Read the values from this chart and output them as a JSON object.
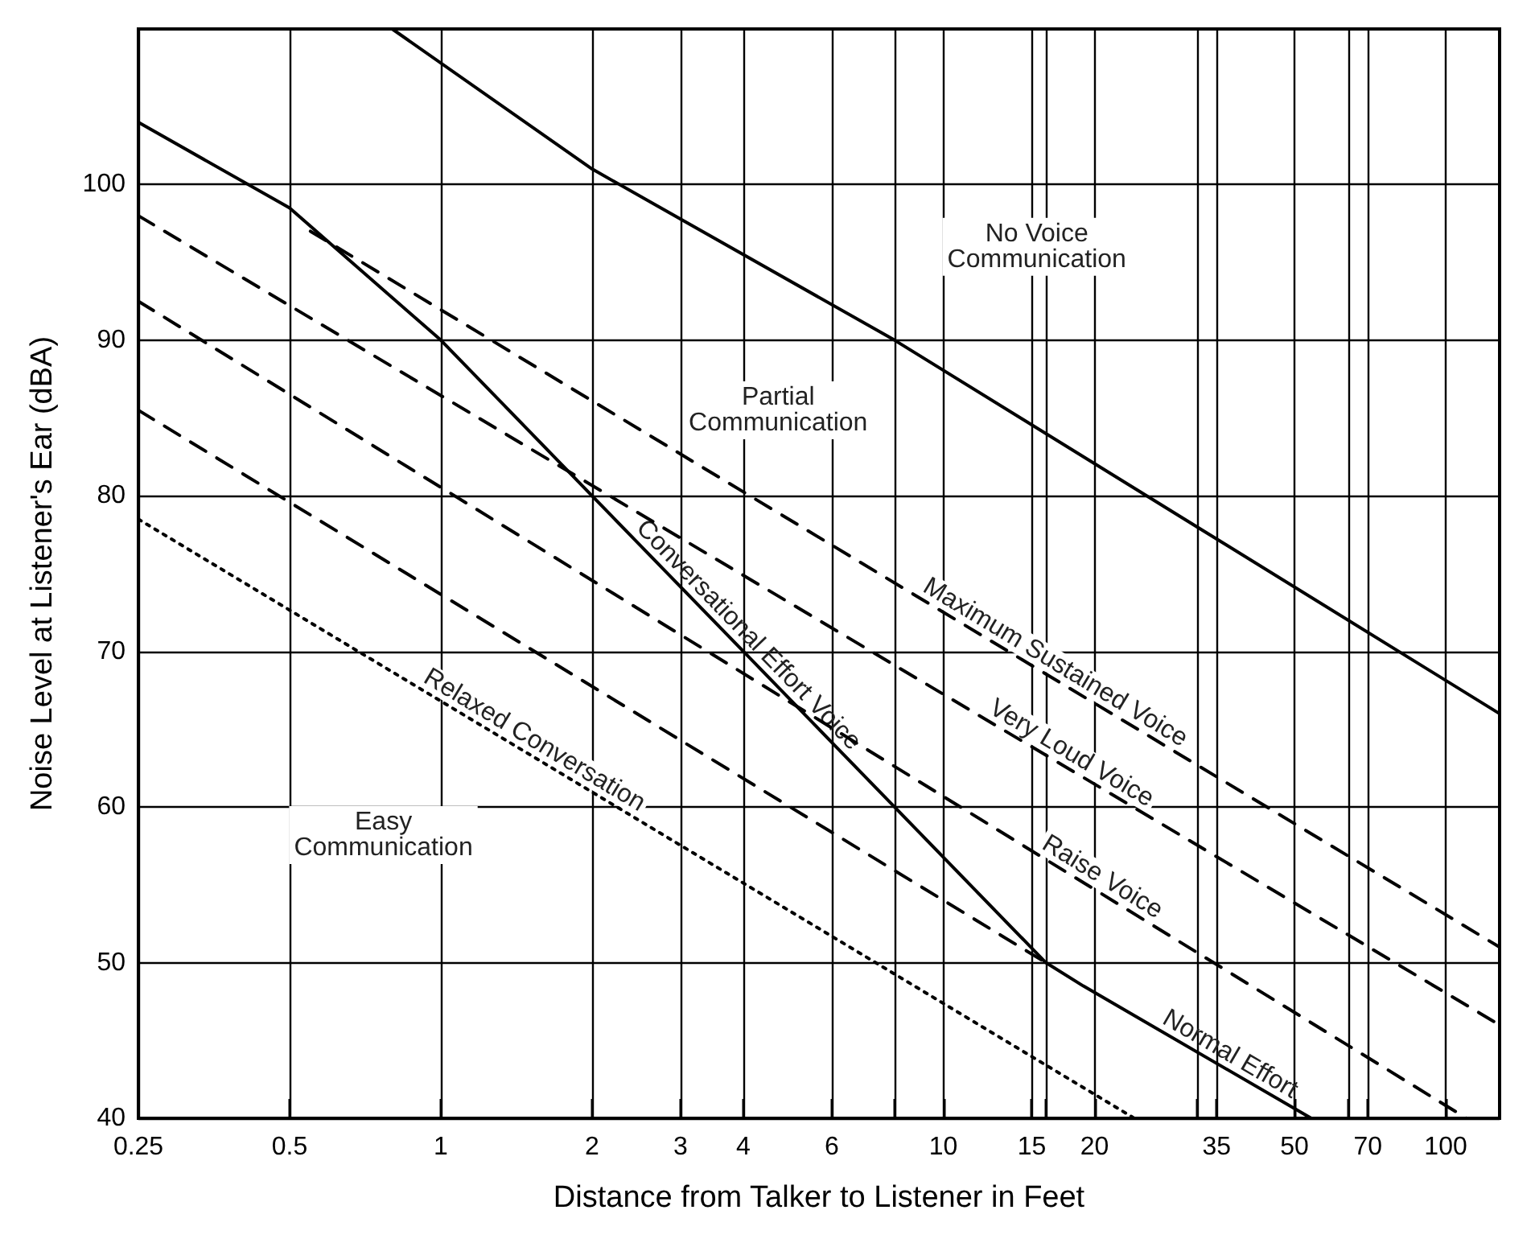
{
  "chart_data": {
    "type": "line",
    "xlabel": "Distance from Talker to Listener in Feet",
    "ylabel": "Noise Level at Listener's Ear (dBA)",
    "log": "x",
    "xlim": [
      0.25,
      128
    ],
    "ylim": [
      40,
      110
    ],
    "xticks": [
      0.25,
      0.5,
      1,
      2,
      3,
      4,
      6,
      {
        "value": 8,
        "label": null
      },
      10,
      15,
      {
        "value": 16,
        "label": null
      },
      20,
      {
        "value": 32,
        "label": null
      },
      35,
      50,
      {
        "value": 64,
        "label": null
      },
      70,
      100
    ],
    "yticks": [
      40,
      50,
      60,
      70,
      80,
      90,
      100
    ],
    "grid": true,
    "marker": "none",
    "series": [
      {
        "color": "#000000",
        "line_style": "solid",
        "x": [
          0.8,
          2,
          8,
          32,
          128
        ],
        "values": [
          110,
          101,
          90,
          78,
          66
        ]
      },
      {
        "color": "#000000",
        "line_style": "solid",
        "x": [
          0.25,
          0.5,
          1,
          2,
          4,
          8,
          16,
          19,
          54
        ],
        "values": [
          104,
          98.5,
          90,
          80,
          70,
          60,
          50,
          48.5,
          40
        ]
      },
      {
        "name": "Maximum Sustained Voice",
        "color": "#000000",
        "line_style": "dashed",
        "x": [
          0.55,
          128
        ],
        "values": [
          97,
          51
        ]
      },
      {
        "name": "Very Loud Voice",
        "color": "#000000",
        "line_style": "dashed",
        "x": [
          0.25,
          128
        ],
        "values": [
          98,
          46
        ]
      },
      {
        "name": "Raise Voice",
        "color": "#000000",
        "line_style": "dashed",
        "x": [
          0.25,
          110
        ],
        "values": [
          92.5,
          40
        ]
      },
      {
        "color": "#000000",
        "line_style": "dashed",
        "x": [
          0.25,
          16
        ],
        "values": [
          85.5,
          50
        ]
      },
      {
        "name": "Relaxed Conversation",
        "color": "#000000",
        "line_style": "dotted",
        "x": [
          0.25,
          24
        ],
        "values": [
          78.5,
          40
        ]
      }
    ],
    "annotations": [
      "No Voice\nCommunication",
      "Partial\nCommunication",
      "Easy\nCommunication",
      {
        "text": "Conversational Effort Voice",
        "x": 3.9,
        "y": 70.4
      },
      {
        "text": "Normal Effort",
        "x": 36,
        "y": 43.3
      }
    ]
  }
}
